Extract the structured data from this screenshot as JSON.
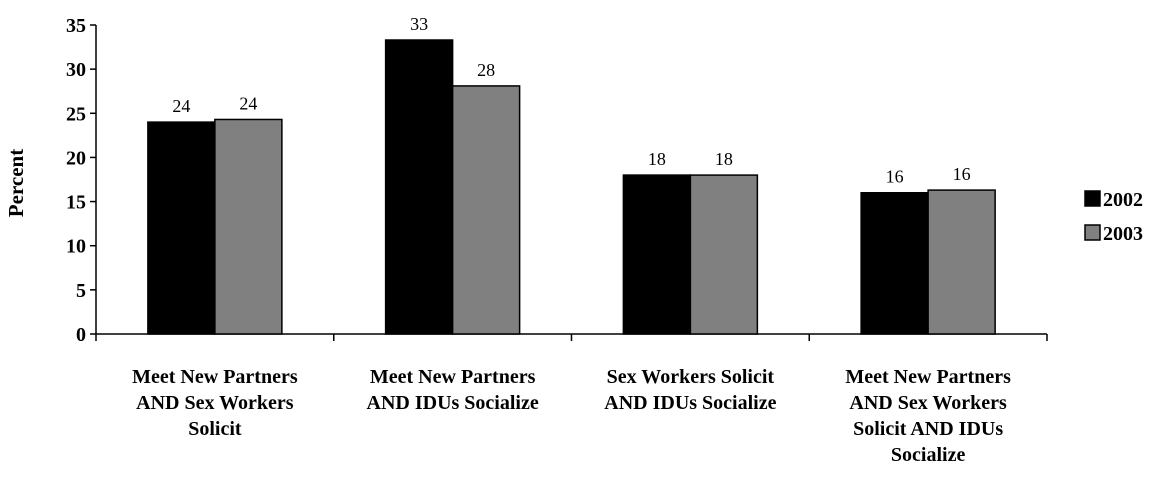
{
  "chart_data": {
    "type": "bar",
    "title": "",
    "xlabel": "",
    "ylabel": "Percent",
    "ylim": [
      0,
      35
    ],
    "yticks": [
      0,
      5,
      10,
      15,
      20,
      25,
      30,
      35
    ],
    "grid": false,
    "legend_position": "right",
    "categories": [
      [
        "Meet New Partners",
        "AND Sex Workers",
        "Solicit"
      ],
      [
        "Meet New Partners",
        "AND IDUs Socialize"
      ],
      [
        "Sex Workers Solicit",
        "AND IDUs Socialize"
      ],
      [
        "Meet New Partners",
        "AND Sex Workers",
        "Solicit AND IDUs",
        "Socialize"
      ]
    ],
    "series": [
      {
        "name": "2002",
        "color": "#000000",
        "values": [
          24,
          33.3,
          18,
          16
        ],
        "labels": [
          "24",
          "33",
          "18",
          "16"
        ]
      },
      {
        "name": "2003",
        "color": "#808080",
        "values": [
          24.3,
          28.1,
          18,
          16.3
        ],
        "labels": [
          "24",
          "28",
          "18",
          "16"
        ]
      }
    ]
  }
}
